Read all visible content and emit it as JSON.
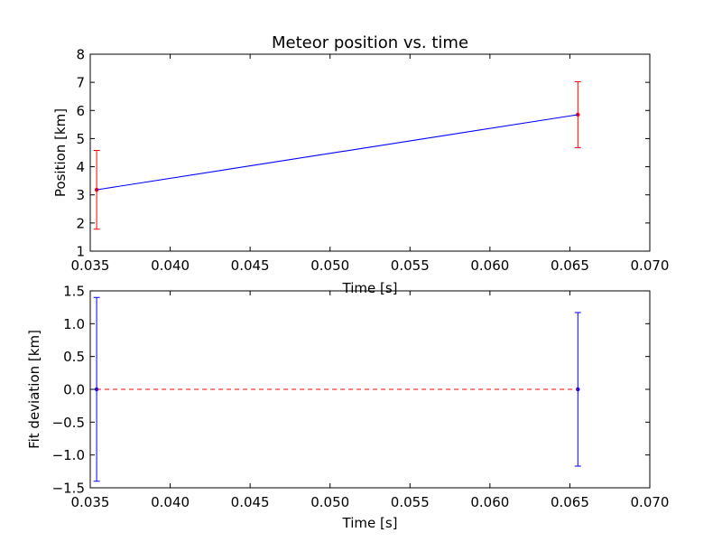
{
  "chart_data": [
    {
      "type": "line",
      "title": "Meteor position vs. time",
      "xlabel": "Time [s]",
      "ylabel": "Position [km]",
      "xlim": [
        0.035,
        0.07
      ],
      "ylim": [
        1,
        8
      ],
      "xticks": [
        0.035,
        0.04,
        0.045,
        0.05,
        0.055,
        0.06,
        0.065,
        0.07
      ],
      "xtick_labels": [
        "0.035",
        "0.040",
        "0.045",
        "0.050",
        "0.055",
        "0.060",
        "0.065",
        "0.070"
      ],
      "yticks": [
        1,
        2,
        3,
        4,
        5,
        6,
        7,
        8
      ],
      "ytick_labels": [
        "1",
        "2",
        "3",
        "4",
        "5",
        "6",
        "7",
        "8"
      ],
      "series": [
        {
          "kind": "points-with-errorbars",
          "x": [
            0.0354,
            0.0655
          ],
          "y": [
            3.18,
            5.85
          ],
          "yerr": [
            1.4,
            1.17
          ],
          "color": "#ff0000"
        },
        {
          "kind": "fit-line",
          "x": [
            0.0354,
            0.0655
          ],
          "y": [
            3.18,
            5.85
          ],
          "color": "#0000ff"
        }
      ],
      "grid": false
    },
    {
      "type": "line",
      "title": "",
      "xlabel": "Time [s]",
      "ylabel": "Fit deviation [km]",
      "xlim": [
        0.035,
        0.07
      ],
      "ylim": [
        -1.5,
        1.5
      ],
      "xticks": [
        0.035,
        0.04,
        0.045,
        0.05,
        0.055,
        0.06,
        0.065,
        0.07
      ],
      "xtick_labels": [
        "0.035",
        "0.040",
        "0.045",
        "0.050",
        "0.055",
        "0.060",
        "0.065",
        "0.070"
      ],
      "yticks": [
        -1.5,
        -1.0,
        -0.5,
        0.0,
        0.5,
        1.0,
        1.5
      ],
      "ytick_labels": [
        "−1.5",
        "−1.0",
        "−0.5",
        "0.0",
        "0.5",
        "1.0",
        "1.5"
      ],
      "series": [
        {
          "kind": "points-with-errorbars",
          "x": [
            0.0354,
            0.0655
          ],
          "y": [
            0.0,
            0.0
          ],
          "yerr": [
            1.4,
            1.17
          ],
          "color": "#0000ff"
        },
        {
          "kind": "zero-line",
          "x": [
            0.0354,
            0.0655
          ],
          "y": [
            0.0,
            0.0
          ],
          "color": "#ff0000"
        }
      ],
      "grid": false
    }
  ]
}
